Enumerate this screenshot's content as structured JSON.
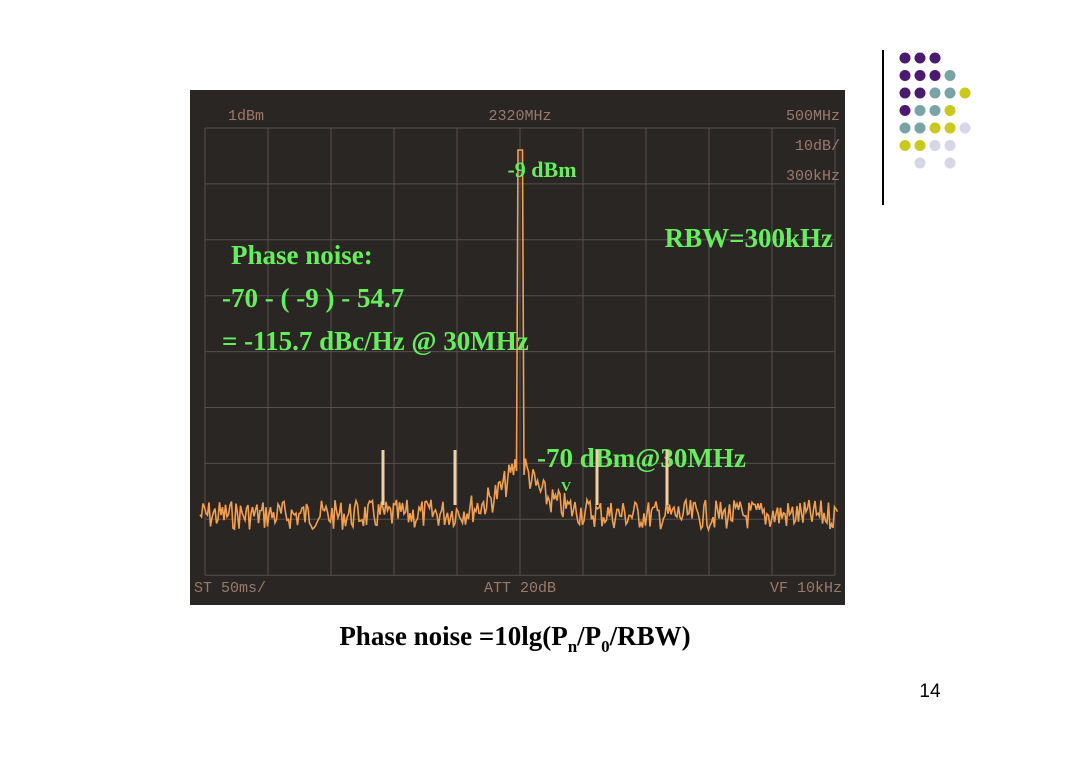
{
  "screen": {
    "top_left": "1dBm",
    "top_center": "2320MHz",
    "top_right": [
      "500MHz",
      "10dB/",
      "300kHz"
    ],
    "bottom_left": "ST 50ms/",
    "bottom_center": "ATT 20dB",
    "bottom_right": "VF 10kHz"
  },
  "annotations": {
    "peak": "-9 dBm",
    "rbw": "RBW=300kHz",
    "phase_noise_title": "Phase noise:",
    "phase_noise_calc": "-70 - ( -9 ) - 54.7",
    "phase_noise_result": "= -115.7 dBc/Hz @ 30MHz",
    "offset_level": "-70 dBm@30MHz",
    "marker": "V"
  },
  "caption": {
    "parts": [
      "Phase noise =10lg(P",
      "n",
      "/P",
      "0",
      "/RBW)"
    ]
  },
  "page_number": "14"
}
